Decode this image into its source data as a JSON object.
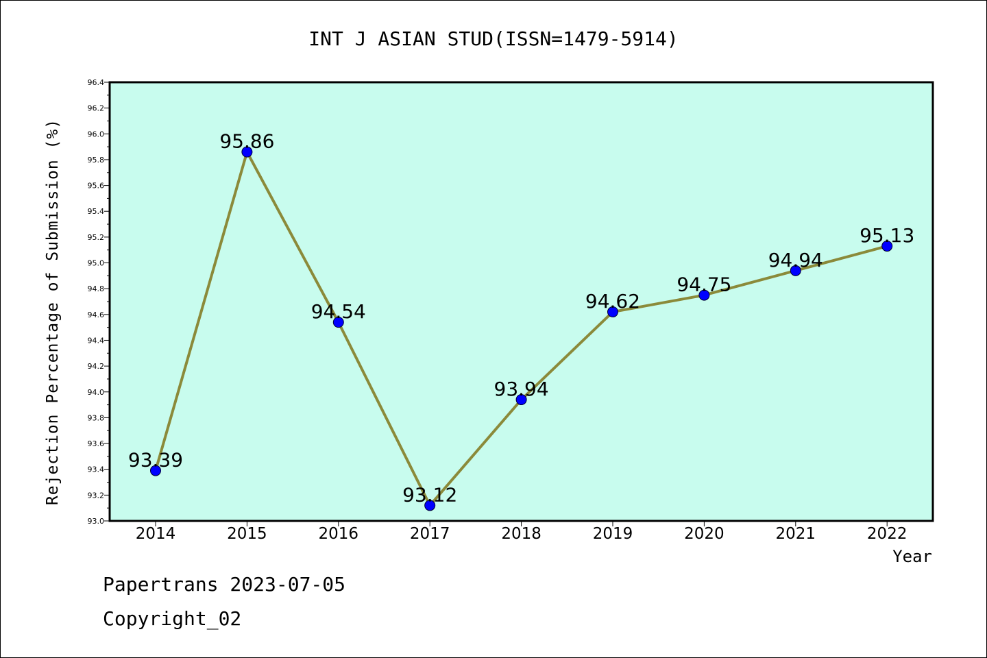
{
  "chart_data": {
    "type": "line",
    "title": "INT J ASIAN STUD(ISSN=1479-5914)",
    "xlabel": "Year",
    "ylabel": "Rejection Percentage of Submission (%)",
    "categories": [
      "2014",
      "2015",
      "2016",
      "2017",
      "2018",
      "2019",
      "2020",
      "2021",
      "2022"
    ],
    "values": [
      93.39,
      95.86,
      94.54,
      93.12,
      93.94,
      94.62,
      94.75,
      94.94,
      95.13
    ],
    "data_labels": [
      "93.39",
      "95.86",
      "94.54",
      "93.12",
      "93.94",
      "94.62",
      "94.75",
      "94.94",
      "95.13"
    ],
    "ylim": [
      93.0,
      96.4
    ],
    "yticks": [
      "93.0",
      "93.2",
      "93.4",
      "93.6",
      "93.8",
      "94.0",
      "94.2",
      "94.4",
      "94.6",
      "94.8",
      "95.0",
      "95.2",
      "95.4",
      "95.6",
      "95.8",
      "96.0",
      "96.2",
      "96.4"
    ],
    "grid": false,
    "colors": {
      "plot_background": "#c8fcee",
      "line": "#8b8a3a",
      "marker": "#0000ff"
    }
  },
  "footer": {
    "line1": "Papertrans 2023-07-05",
    "line2": "Copyright_02"
  }
}
